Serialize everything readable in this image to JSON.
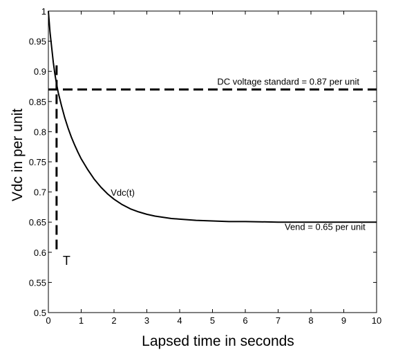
{
  "chart_data": {
    "type": "line",
    "title": "",
    "xlabel": "Lapsed time in seconds",
    "ylabel": "Vdc in per unit",
    "xlim": [
      0,
      10
    ],
    "ylim": [
      0.5,
      1
    ],
    "xticks": [
      0,
      1,
      2,
      3,
      4,
      5,
      6,
      7,
      8,
      9,
      10
    ],
    "xtick_labels": [
      "0",
      "1",
      "2",
      "3",
      "4",
      "5",
      "6",
      "7",
      "8",
      "9",
      "10"
    ],
    "yticks": [
      0.5,
      0.55,
      0.6,
      0.65,
      0.7,
      0.75,
      0.8,
      0.85,
      0.9,
      0.95,
      1
    ],
    "ytick_labels": [
      "0.5",
      "0.55",
      "0.6",
      "0.65",
      "0.7",
      "0.75",
      "0.8",
      "0.85",
      "0.9",
      "0.95",
      "1"
    ],
    "grid": false,
    "legend": false,
    "series": [
      {
        "name": "Vdc(t)",
        "style": "solid",
        "color": "#000000",
        "x": [
          0,
          0.05,
          0.1,
          0.15,
          0.2,
          0.25,
          0.3,
          0.4,
          0.5,
          0.6,
          0.7,
          0.8,
          0.9,
          1.0,
          1.2,
          1.4,
          1.6,
          1.8,
          2.0,
          2.25,
          2.5,
          2.75,
          3.0,
          3.25,
          3.5,
          3.75,
          4.0,
          4.5,
          5.0,
          5.5,
          6.0,
          7.0,
          8.0,
          9.0,
          10.0
        ],
        "y": [
          1.0,
          0.965,
          0.94,
          0.915,
          0.895,
          0.879,
          0.865,
          0.843,
          0.823,
          0.806,
          0.791,
          0.778,
          0.766,
          0.755,
          0.737,
          0.721,
          0.708,
          0.697,
          0.688,
          0.679,
          0.672,
          0.667,
          0.663,
          0.66,
          0.658,
          0.656,
          0.655,
          0.653,
          0.652,
          0.651,
          0.651,
          0.65,
          0.65,
          0.65,
          0.65
        ]
      }
    ],
    "reference_lines": [
      {
        "orientation": "horizontal",
        "value": 0.87,
        "style": "dashed",
        "label": "DC voltage standard = 0.87 per unit"
      },
      {
        "orientation": "vertical",
        "value": 0.25,
        "y_range": [
          0.6,
          0.91
        ],
        "style": "dashed",
        "label": "T"
      }
    ],
    "annotations": [
      {
        "text": "Vdc(t)",
        "x": 1.9,
        "y": 0.694
      },
      {
        "text": "Vend = 0.65 per unit",
        "x": 7.2,
        "y": 0.637
      }
    ]
  }
}
